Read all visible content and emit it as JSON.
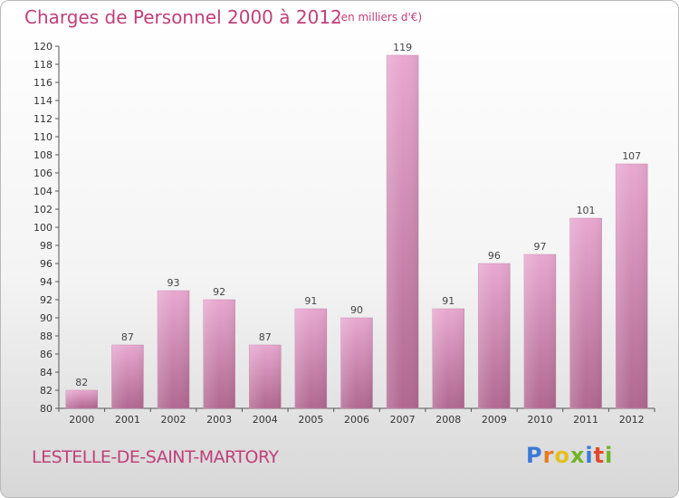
{
  "header": {
    "title": "Charges de Personnel 2000 à 2012",
    "subtitle": "(en milliers d'€)"
  },
  "footer": {
    "commune": "LESTELLE-DE-SAINT-MARTORY",
    "logo": "Proxiti",
    "logo_colors": [
      "#3a7ad6",
      "#e57b1f",
      "#e5c020",
      "#6fb526",
      "#3a7ad6",
      "#e04a2a",
      "#6fb526"
    ]
  },
  "colors": {
    "bar_top": "#e8a8d0",
    "bar_bottom": "#b06890",
    "text_accent": "#c0407a"
  },
  "chart_data": {
    "type": "bar",
    "categories": [
      "2000",
      "2001",
      "2002",
      "2003",
      "2004",
      "2005",
      "2006",
      "2007",
      "2008",
      "2009",
      "2010",
      "2011",
      "2012"
    ],
    "values": [
      82,
      87,
      93,
      92,
      87,
      91,
      90,
      119,
      91,
      96,
      97,
      101,
      107
    ],
    "title": "Charges de Personnel 2000 à 2012",
    "xlabel": "",
    "ylabel": "",
    "ylim": [
      80,
      120
    ],
    "yticks": [
      80,
      82,
      84,
      86,
      88,
      90,
      92,
      94,
      96,
      98,
      100,
      102,
      104,
      106,
      108,
      110,
      112,
      114,
      116,
      118,
      120
    ],
    "grid": false,
    "legend": "none"
  }
}
